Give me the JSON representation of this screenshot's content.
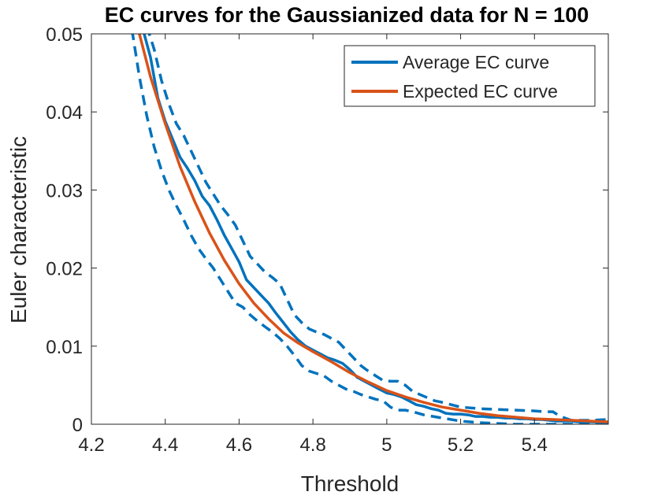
{
  "chart_data": {
    "type": "line",
    "title": "EC curves for the Gaussianized data for N = 100",
    "xlabel": "Threshold",
    "ylabel": "Euler characteristic",
    "xlim": [
      4.2,
      5.6
    ],
    "ylim": [
      0,
      0.05
    ],
    "xticks": [
      4.2,
      4.4,
      4.6,
      4.8,
      5,
      5.2,
      5.4
    ],
    "xtick_labels": [
      "4.2",
      "4.4",
      "4.6",
      "4.8",
      "5",
      "5.2",
      "5.4"
    ],
    "yticks": [
      0,
      0.01,
      0.02,
      0.03,
      0.04,
      0.05
    ],
    "ytick_labels": [
      "0",
      "0.01",
      "0.02",
      "0.03",
      "0.04",
      "0.05"
    ],
    "grid": false,
    "legend_position": "top-right",
    "series": [
      {
        "name": "Average EC curve",
        "color": "#0072BD",
        "style": "solid",
        "in_legend": true,
        "x": [
          4.34,
          4.36,
          4.38,
          4.4,
          4.42,
          4.44,
          4.46,
          4.48,
          4.5,
          4.52,
          4.54,
          4.56,
          4.58,
          4.6,
          4.62,
          4.64,
          4.66,
          4.68,
          4.7,
          4.72,
          4.74,
          4.76,
          4.78,
          4.8,
          4.82,
          4.84,
          4.86,
          4.88,
          4.9,
          4.92,
          4.94,
          4.96,
          4.98,
          5.0,
          5.02,
          5.04,
          5.06,
          5.08,
          5.1,
          5.12,
          5.14,
          5.16,
          5.18,
          5.2,
          5.22,
          5.24,
          5.26,
          5.28,
          5.3,
          5.32,
          5.34,
          5.36,
          5.38,
          5.4,
          5.42,
          5.44,
          5.46,
          5.48,
          5.5,
          5.52,
          5.54,
          5.56,
          5.58,
          5.6
        ],
        "y": [
          0.0505,
          0.047,
          0.0418,
          0.0388,
          0.0365,
          0.0342,
          0.0328,
          0.0312,
          0.0292,
          0.028,
          0.0262,
          0.0242,
          0.0225,
          0.0208,
          0.0185,
          0.0175,
          0.0165,
          0.0155,
          0.0142,
          0.013,
          0.0118,
          0.0108,
          0.01,
          0.0095,
          0.009,
          0.0085,
          0.0082,
          0.0078,
          0.007,
          0.006,
          0.0055,
          0.005,
          0.0045,
          0.004,
          0.0038,
          0.0035,
          0.003,
          0.0025,
          0.0023,
          0.002,
          0.0018,
          0.0014,
          0.0013,
          0.0013,
          0.0012,
          0.001,
          0.001,
          0.0009,
          0.0009,
          0.0008,
          0.0008,
          0.0007,
          0.0007,
          0.0006,
          0.0006,
          0.0005,
          0.0004,
          0.0004,
          0.0004,
          0.0003,
          0.0003,
          0.0003,
          0.0002,
          0.0002
        ]
      },
      {
        "name": "Expected EC curve",
        "color": "#D95319",
        "style": "solid",
        "in_legend": true,
        "x": [
          4.33,
          4.36,
          4.4,
          4.44,
          4.48,
          4.52,
          4.56,
          4.6,
          4.64,
          4.68,
          4.72,
          4.76,
          4.8,
          4.85,
          4.9,
          4.95,
          5.0,
          5.05,
          5.1,
          5.15,
          5.2,
          5.25,
          5.3,
          5.35,
          5.4,
          5.45,
          5.5,
          5.55,
          5.6
        ],
        "y": [
          0.05,
          0.0445,
          0.0385,
          0.033,
          0.0285,
          0.0245,
          0.021,
          0.018,
          0.0155,
          0.0135,
          0.0117,
          0.0104,
          0.0093,
          0.008,
          0.0066,
          0.0054,
          0.0043,
          0.0035,
          0.0028,
          0.0022,
          0.0018,
          0.0014,
          0.0011,
          0.0009,
          0.0007,
          0.0006,
          0.0005,
          0.0004,
          0.0003
        ]
      },
      {
        "name": "",
        "color": "#0072BD",
        "style": "dashed",
        "in_legend": false,
        "x": [
          4.35,
          4.37,
          4.39,
          4.41,
          4.43,
          4.45,
          4.47,
          4.49,
          4.51,
          4.53,
          4.55,
          4.57,
          4.59,
          4.61,
          4.63,
          4.65,
          4.67,
          4.69,
          4.71,
          4.73,
          4.75,
          4.77,
          4.79,
          4.81,
          4.83,
          4.85,
          4.87,
          4.89,
          4.91,
          4.93,
          4.95,
          4.97,
          4.99,
          5.01,
          5.03,
          5.05,
          5.07,
          5.09,
          5.11,
          5.13,
          5.15,
          5.2,
          5.25,
          5.3,
          5.35,
          5.4,
          5.43,
          5.45,
          5.47,
          5.5,
          5.55,
          5.6
        ],
        "y": [
          0.051,
          0.048,
          0.044,
          0.041,
          0.0385,
          0.037,
          0.035,
          0.033,
          0.031,
          0.0295,
          0.028,
          0.0268,
          0.0255,
          0.0235,
          0.0215,
          0.0205,
          0.0195,
          0.0188,
          0.018,
          0.016,
          0.014,
          0.013,
          0.0122,
          0.0118,
          0.0115,
          0.011,
          0.0105,
          0.0095,
          0.0085,
          0.0075,
          0.0068,
          0.0062,
          0.0056,
          0.0055,
          0.0055,
          0.005,
          0.0042,
          0.0038,
          0.0034,
          0.003,
          0.0028,
          0.0022,
          0.002,
          0.0019,
          0.0018,
          0.0017,
          0.0016,
          0.0016,
          0.001,
          0.0005,
          0.0005,
          0.0006
        ]
      },
      {
        "name": "",
        "color": "#0072BD",
        "style": "dashed",
        "in_legend": false,
        "x": [
          4.31,
          4.33,
          4.35,
          4.37,
          4.39,
          4.41,
          4.43,
          4.45,
          4.47,
          4.49,
          4.51,
          4.53,
          4.55,
          4.57,
          4.59,
          4.61,
          4.63,
          4.65,
          4.67,
          4.69,
          4.71,
          4.73,
          4.75,
          4.77,
          4.79,
          4.81,
          4.83,
          4.85,
          4.87,
          4.89,
          4.91,
          4.93,
          4.95,
          4.97,
          4.99,
          5.01,
          5.03,
          5.05,
          5.07,
          5.1,
          5.15,
          5.2,
          5.25,
          5.3,
          5.35,
          5.4,
          5.45,
          5.5,
          5.55,
          5.6
        ],
        "y": [
          0.0505,
          0.0445,
          0.0395,
          0.0355,
          0.0325,
          0.03,
          0.028,
          0.0262,
          0.0242,
          0.0225,
          0.0212,
          0.02,
          0.0185,
          0.017,
          0.0155,
          0.015,
          0.014,
          0.0132,
          0.0125,
          0.0118,
          0.011,
          0.01,
          0.0088,
          0.0075,
          0.0068,
          0.0065,
          0.0062,
          0.0055,
          0.005,
          0.0045,
          0.0042,
          0.0038,
          0.0035,
          0.0032,
          0.003,
          0.0022,
          0.0018,
          0.0018,
          0.0016,
          0.0012,
          0.0008,
          0.0004,
          0.0002,
          0.0001,
          0.0,
          0.0,
          0.0,
          0.0,
          0.0,
          0.0
        ]
      }
    ]
  }
}
